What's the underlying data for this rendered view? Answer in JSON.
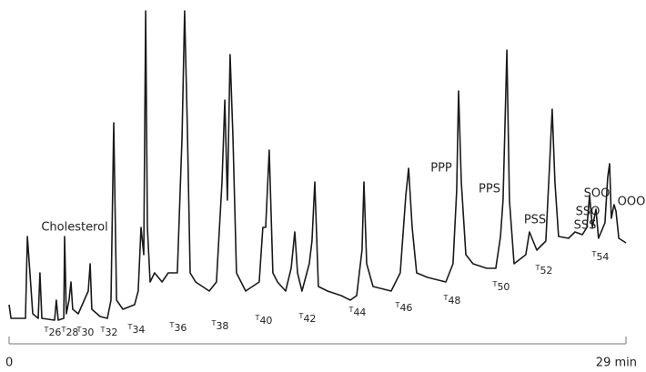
{
  "chart_data": {
    "type": "line",
    "x": [
      0,
      0.09,
      0.43,
      0.77,
      0.86,
      0.98,
      1.11,
      1.37,
      1.45,
      1.54,
      2.14,
      2.22,
      2.31,
      2.57,
      2.61,
      2.69,
      2.82,
      2.91,
      2.99,
      3.25,
      3.72,
      3.81,
      3.89,
      4.28,
      4.62,
      4.79,
      4.92,
      5.05,
      5.35,
      5.9,
      6.07,
      6.2,
      6.33,
      6.42,
      6.5,
      6.63,
      6.84,
      7.19,
      7.48,
      7.91,
      8.13,
      8.25,
      8.38,
      8.51,
      8.77,
      9.41,
      9.75,
      10.01,
      10.14,
      10.26,
      10.39,
      10.52,
      10.69,
      11.12,
      11.76,
      11.93,
      12.06,
      12.23,
      12.4,
      12.62,
      13.0,
      13.26,
      13.43,
      13.56,
      13.77,
      14.11,
      14.24,
      14.37,
      14.54,
      14.97,
      15.61,
      16.04,
      16.34,
      16.59,
      16.68,
      16.81,
      17.11,
      17.96,
      18.39,
      18.65,
      18.78,
      18.95,
      19.16,
      19.67,
      20.53,
      20.87,
      21.04,
      21.13,
      21.26,
      21.47,
      21.81,
      22.45,
      22.88,
      23.1,
      23.22,
      23.4,
      23.52,
      23.74,
      24.29,
      24.46,
      24.81,
      25.23,
      25.41,
      25.53,
      25.66,
      25.83,
      26.3,
      26.6,
      26.95,
      27.16,
      27.29,
      27.42,
      27.59,
      27.71,
      28.01,
      28.14,
      28.23,
      28.31,
      28.44,
      28.53,
      28.66,
      29.0
    ],
    "values": [
      25,
      10,
      10,
      10,
      100,
      60,
      15,
      10,
      60,
      10,
      8,
      30,
      8,
      10,
      100,
      15,
      30,
      50,
      20,
      15,
      40,
      70,
      20,
      12,
      10,
      30,
      225,
      30,
      20,
      25,
      40,
      110,
      80,
      348,
      110,
      50,
      60,
      50,
      60,
      60,
      210,
      348,
      220,
      60,
      50,
      40,
      50,
      160,
      250,
      140,
      300,
      210,
      60,
      40,
      50,
      110,
      110,
      195,
      60,
      50,
      40,
      65,
      105,
      60,
      40,
      70,
      95,
      160,
      45,
      40,
      35,
      30,
      35,
      85,
      160,
      70,
      45,
      40,
      60,
      145,
      175,
      110,
      60,
      55,
      50,
      70,
      150,
      260,
      160,
      80,
      70,
      65,
      65,
      100,
      140,
      305,
      140,
      70,
      80,
      105,
      85,
      95,
      180,
      240,
      160,
      100,
      98,
      105,
      102,
      110,
      145,
      110,
      130,
      98,
      115,
      165,
      180,
      120,
      135,
      128,
      98,
      93
    ],
    "color": "#1a1a1a",
    "xlim": [
      0,
      29
    ],
    "xticks": [
      0,
      {
        "value": 29,
        "label": "29 min"
      }
    ],
    "ylim": [
      0,
      350
    ],
    "annotations": [
      "Cholesterol",
      "PPP",
      "PPS",
      "PSS",
      "SSS",
      "SSO",
      "SOO",
      "OOO"
    ],
    "carbon_labels": [
      "T26",
      "T28",
      "T30",
      "T32",
      "T34",
      "T36",
      "T38",
      "T40",
      "T42",
      "T44",
      "T46",
      "T48",
      "T50",
      "T52",
      "T54"
    ]
  }
}
